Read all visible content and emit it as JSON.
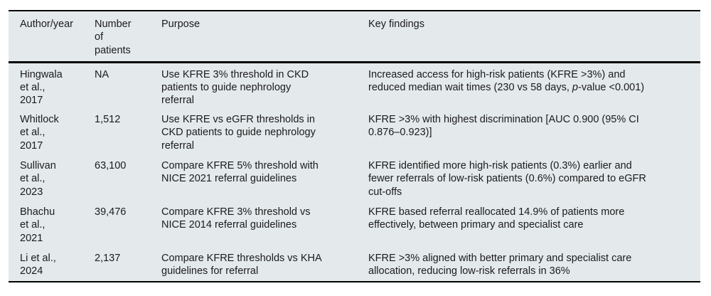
{
  "colors": {
    "table_background": "#e4e9eb",
    "rule_color": "#000000",
    "text_color": "#1b1b1b",
    "page_background": "#ffffff"
  },
  "table": {
    "headers": [
      "Author/year",
      "Number\nof\npatients",
      "Purpose",
      "Key findings"
    ],
    "rows": [
      {
        "author": "Hingwala\net al.,\n2017",
        "patients": "NA",
        "purpose": "Use KFRE 3% threshold in CKD\npatients to guide nephrology\nreferral",
        "findings": "Increased access for high-risk patients (KFRE >3%) and\nreduced median wait times (230 vs 58 days, *p*-value <0.001)"
      },
      {
        "author": "Whitlock\net al.,\n2017",
        "patients": "1,512",
        "purpose": "Use KFRE vs eGFR thresholds in\nCKD patients to guide nephrology\nreferral",
        "findings": "KFRE >3% with highest discrimination [AUC 0.900 (95% CI\n0.876–0.923)]"
      },
      {
        "author": "Sullivan\net al.,\n2023",
        "patients": "63,100",
        "purpose": "Compare KFRE 5% threshold with\nNICE 2021 referral guidelines",
        "findings": "KFRE identified more high-risk patients (0.3%) earlier and\nfewer referrals of low-risk patients (0.6%) compared to eGFR\ncut-offs"
      },
      {
        "author": "Bhachu\net al.,\n2021",
        "patients": "39,476",
        "purpose": "Compare KFRE 3% threshold vs\nNICE 2014 referral guidelines",
        "findings": "KFRE based referral reallocated 14.9% of patients more\neffectively, between primary and specialist care"
      },
      {
        "author": "Li et al.,\n2024",
        "patients": "2,137",
        "purpose": "Compare KFRE thresholds vs KHA\nguidelines for referral",
        "findings": "KFRE >3% aligned with better primary and specialist care\nallocation, reducing low-risk referrals in 36%"
      }
    ]
  }
}
